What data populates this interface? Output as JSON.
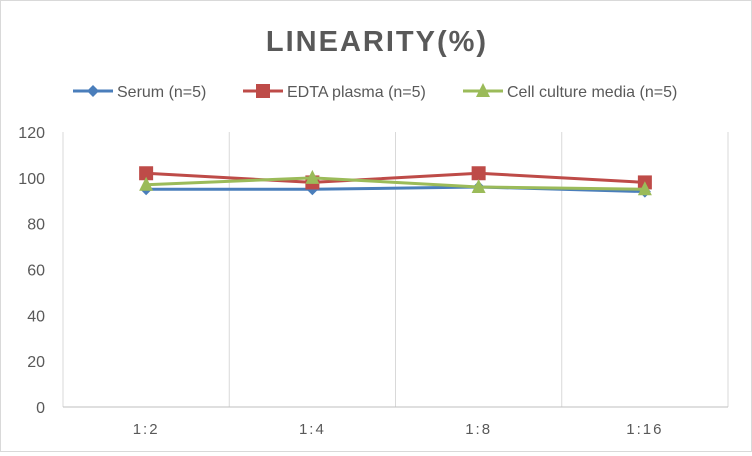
{
  "chart_data": {
    "type": "line",
    "title": "LINEARITY(%)",
    "categories": [
      "1:2",
      "1:4",
      "1:8",
      "1:16"
    ],
    "ylim": [
      0,
      120
    ],
    "yticks": [
      0,
      20,
      40,
      60,
      80,
      100,
      120
    ],
    "grid": "vertical",
    "legend": "top",
    "series": [
      {
        "name": "Serum (n=5)",
        "color": "#4a7ebb",
        "marker": "diamond",
        "values": [
          95,
          95,
          96,
          94
        ]
      },
      {
        "name": "EDTA plasma (n=5)",
        "color": "#be4b48",
        "marker": "square",
        "values": [
          102,
          98,
          102,
          98
        ]
      },
      {
        "name": "Cell culture media (n=5)",
        "color": "#9bbb59",
        "marker": "triangle",
        "values": [
          97,
          100,
          96,
          95
        ]
      }
    ]
  }
}
